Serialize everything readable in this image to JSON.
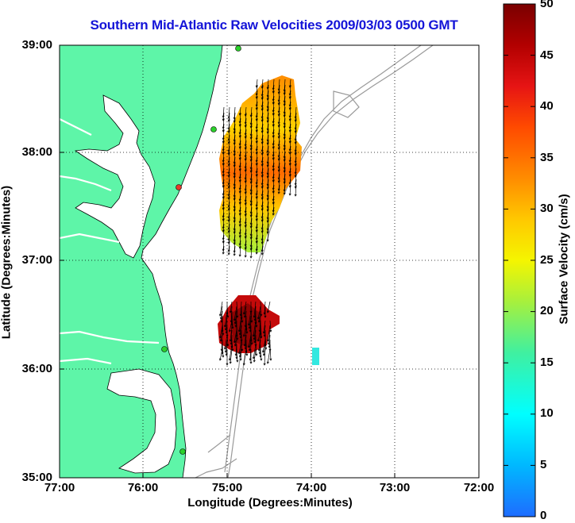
{
  "title": "Southern Mid-Atlantic Raw Velocities 2009/03/03 0500 GMT",
  "map": {
    "x_axis_label": "Longitude (Degrees:Minutes)",
    "y_axis_label": "Latitude (Degrees:Minutes)",
    "lon_range": [
      -77.0,
      -72.0
    ],
    "lat_range": [
      35.0,
      39.0
    ],
    "x_ticks": [
      "77:00",
      "76:00",
      "75:00",
      "74:00",
      "73:00",
      "72:00"
    ],
    "y_ticks": [
      "39:00",
      "38:00",
      "37:00",
      "36:00",
      "35:00"
    ],
    "grid": "dotted",
    "land_color": "#5ef5a8",
    "water_color": "#ffffff",
    "bathymetry_color": "#9a9a9a",
    "station_color": "#2bd12b",
    "station_red_color": "#e83a2a"
  },
  "colorbar": {
    "label": "Surface Velocity (cm/s)",
    "ticks": [
      "50",
      "45",
      "40",
      "35",
      "30",
      "25",
      "20",
      "15",
      "10",
      "5",
      "0"
    ],
    "range": [
      0,
      50
    ],
    "colors": [
      "#7a0000",
      "#b20000",
      "#e61414",
      "#ff4a00",
      "#ff8c00",
      "#ffc800",
      "#f5f500",
      "#a8f03c",
      "#40f0a0",
      "#00ffff",
      "#00b8ff",
      "#1e6cff"
    ]
  }
}
